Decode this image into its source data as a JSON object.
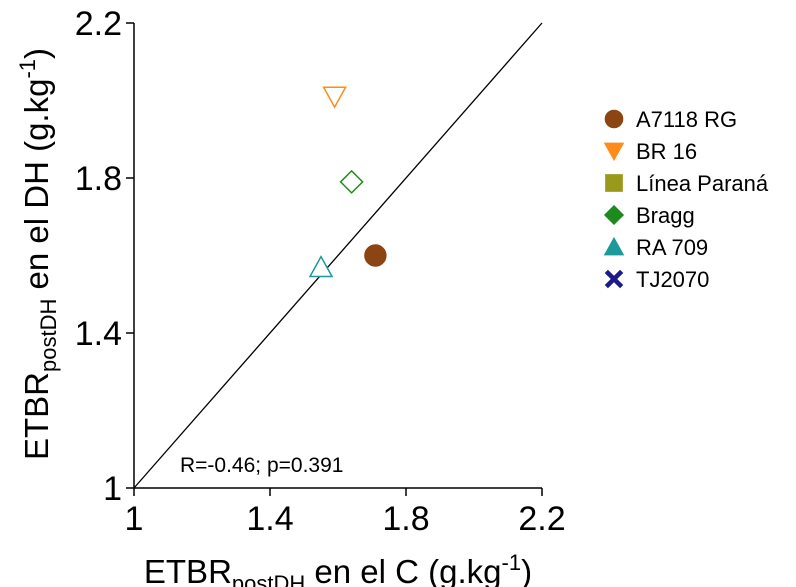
{
  "chart_data": {
    "type": "scatter",
    "xlabel": {
      "main": "ETBR",
      "sub": "postDH",
      "rest": " en el C (g.kg",
      "sup": "-1",
      "end": ")"
    },
    "ylabel": {
      "main": "ETBR",
      "sub": "postDH",
      "rest": " en el DH (g.kg",
      "sup": "-1",
      "end": ")"
    },
    "xlim": [
      1,
      2.2
    ],
    "ylim": [
      1,
      2.2
    ],
    "xticks": [
      1,
      1.4,
      1.8,
      2.2
    ],
    "yticks": [
      1,
      1.4,
      1.8,
      2.2
    ],
    "xtick_labels": [
      "1",
      "1.4",
      "1.8",
      "2.2"
    ],
    "ytick_labels": [
      "1",
      "1.4",
      "1.8",
      "2.2"
    ],
    "reference_line": {
      "type": "1:1",
      "from": [
        1,
        1
      ],
      "to": [
        2.2,
        2.2
      ]
    },
    "annotation": "R=-0.46; p=0.391",
    "legend_position": "right",
    "series": [
      {
        "name": "A7118 RG",
        "color": "#8B4513",
        "marker": "circle",
        "filled": true,
        "points": [
          [
            1.71,
            1.6
          ]
        ]
      },
      {
        "name": "BR 16",
        "color": "#FF8C1A",
        "marker": "triangle-down",
        "filled": true,
        "points": [
          [
            1.59,
            2.01
          ]
        ]
      },
      {
        "name": "Línea Paraná",
        "color": "#9A9A1A",
        "marker": "square",
        "filled": true,
        "points": []
      },
      {
        "name": "Bragg",
        "color": "#1E8A1E",
        "marker": "diamond",
        "filled": true,
        "points": [
          [
            1.64,
            1.79
          ]
        ]
      },
      {
        "name": "RA 709",
        "color": "#1A9A9A",
        "marker": "triangle-up",
        "filled": true,
        "points": [
          [
            1.55,
            1.57
          ]
        ]
      },
      {
        "name": "TJ2070",
        "color": "#1A1A8C",
        "marker": "x",
        "filled": true,
        "points": []
      }
    ],
    "point_style": [
      {
        "series": "A7118 RG",
        "filled": true
      },
      {
        "series": "BR 16",
        "filled": false
      },
      {
        "series": "Bragg",
        "filled": false
      },
      {
        "series": "RA 709",
        "filled": false
      }
    ]
  }
}
